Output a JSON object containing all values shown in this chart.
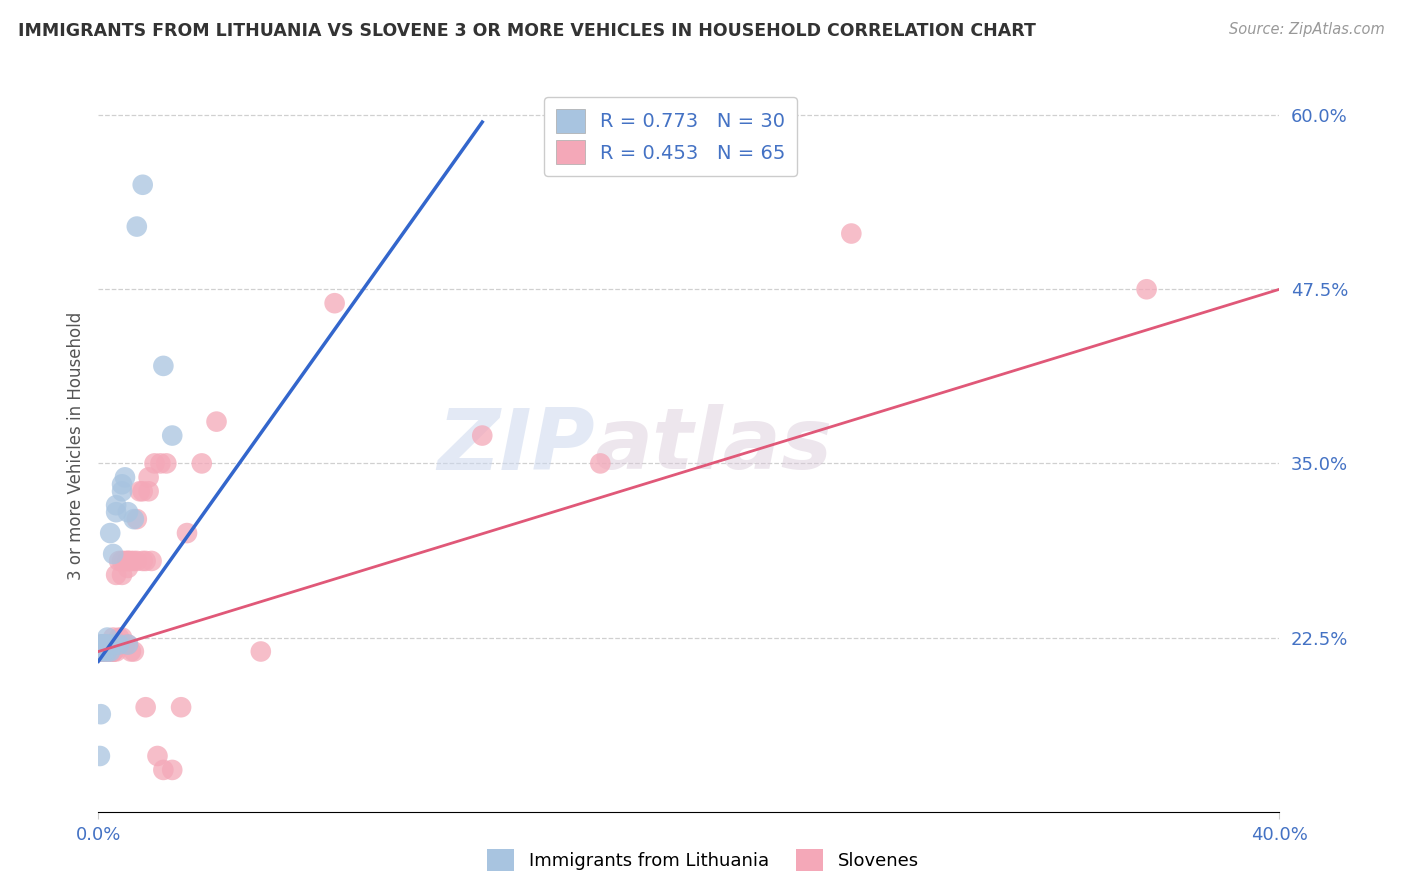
{
  "title": "IMMIGRANTS FROM LITHUANIA VS SLOVENE 3 OR MORE VEHICLES IN HOUSEHOLD CORRELATION CHART",
  "source": "Source: ZipAtlas.com",
  "ylabel": "3 or more Vehicles in Household",
  "xlabel": "",
  "series1_label": "Immigrants from Lithuania",
  "series1_color": "#a8c4e0",
  "series1_line_color": "#3366cc",
  "series1_R": 0.773,
  "series1_N": 30,
  "series2_label": "Slovenes",
  "series2_color": "#f4a8b8",
  "series2_line_color": "#e05878",
  "series2_R": 0.453,
  "series2_N": 65,
  "xlim": [
    0.0,
    0.4
  ],
  "ylim": [
    0.1,
    0.625
  ],
  "yticks_right": [
    0.6,
    0.475,
    0.35,
    0.225
  ],
  "ytick_labels_right": [
    "60.0%",
    "47.5%",
    "35.0%",
    "22.5%"
  ],
  "xticks": [
    0.0,
    0.4
  ],
  "xtick_labels": [
    "0.0%",
    "40.0%"
  ],
  "watermark_zip": "ZIP",
  "watermark_atlas": "atlas",
  "background_color": "#ffffff",
  "title_color": "#333333",
  "axis_label_color": "#555555",
  "tick_color": "#4472c4",
  "grid_color": "#d0d0d0",
  "series1_x": [
    0.0005,
    0.0008,
    0.001,
    0.001,
    0.001,
    0.0015,
    0.002,
    0.002,
    0.002,
    0.003,
    0.003,
    0.003,
    0.003,
    0.004,
    0.004,
    0.005,
    0.005,
    0.006,
    0.006,
    0.007,
    0.008,
    0.008,
    0.009,
    0.01,
    0.01,
    0.012,
    0.013,
    0.015,
    0.022,
    0.025
  ],
  "series1_y": [
    0.14,
    0.17,
    0.22,
    0.22,
    0.215,
    0.22,
    0.22,
    0.22,
    0.215,
    0.215,
    0.22,
    0.22,
    0.225,
    0.215,
    0.3,
    0.22,
    0.285,
    0.315,
    0.32,
    0.22,
    0.335,
    0.33,
    0.34,
    0.315,
    0.22,
    0.31,
    0.52,
    0.55,
    0.42,
    0.37
  ],
  "series2_x": [
    0.0005,
    0.001,
    0.001,
    0.001,
    0.0015,
    0.002,
    0.002,
    0.002,
    0.003,
    0.003,
    0.003,
    0.003,
    0.004,
    0.004,
    0.004,
    0.005,
    0.005,
    0.005,
    0.005,
    0.006,
    0.006,
    0.006,
    0.007,
    0.007,
    0.007,
    0.008,
    0.008,
    0.008,
    0.008,
    0.009,
    0.009,
    0.01,
    0.01,
    0.01,
    0.01,
    0.011,
    0.011,
    0.012,
    0.012,
    0.013,
    0.013,
    0.014,
    0.015,
    0.015,
    0.016,
    0.016,
    0.017,
    0.017,
    0.018,
    0.019,
    0.02,
    0.021,
    0.022,
    0.023,
    0.025,
    0.028,
    0.03,
    0.035,
    0.04,
    0.055,
    0.08,
    0.13,
    0.17,
    0.255,
    0.355
  ],
  "series2_y": [
    0.215,
    0.215,
    0.215,
    0.22,
    0.22,
    0.215,
    0.22,
    0.215,
    0.215,
    0.22,
    0.215,
    0.215,
    0.215,
    0.22,
    0.22,
    0.215,
    0.215,
    0.225,
    0.215,
    0.22,
    0.27,
    0.215,
    0.22,
    0.225,
    0.28,
    0.22,
    0.225,
    0.27,
    0.28,
    0.22,
    0.28,
    0.22,
    0.275,
    0.28,
    0.28,
    0.215,
    0.28,
    0.215,
    0.28,
    0.28,
    0.31,
    0.33,
    0.28,
    0.33,
    0.28,
    0.175,
    0.33,
    0.34,
    0.28,
    0.35,
    0.14,
    0.35,
    0.13,
    0.35,
    0.13,
    0.175,
    0.3,
    0.35,
    0.38,
    0.215,
    0.465,
    0.37,
    0.35,
    0.515,
    0.475
  ],
  "trend1_x0": 0.0,
  "trend1_y0": 0.208,
  "trend1_x1": 0.13,
  "trend1_y1": 0.595,
  "trend2_x0": 0.0,
  "trend2_y0": 0.215,
  "trend2_x1": 0.4,
  "trend2_y1": 0.475
}
